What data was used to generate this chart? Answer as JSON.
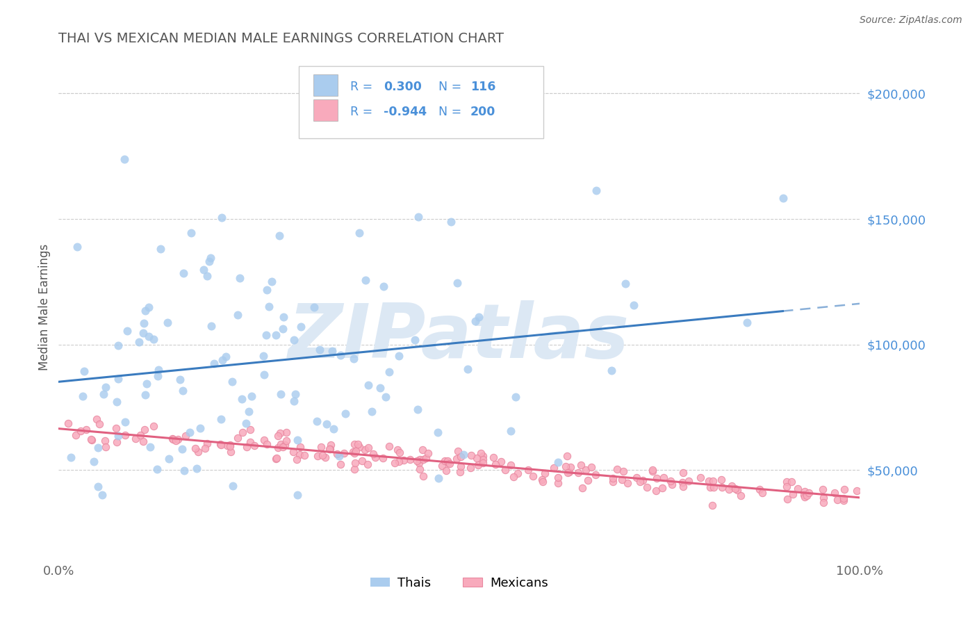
{
  "title": "THAI VS MEXICAN MEDIAN MALE EARNINGS CORRELATION CHART",
  "source": "Source: ZipAtlas.com",
  "ylabel": "Median Male Earnings",
  "xlim": [
    0,
    1
  ],
  "ylim": [
    15000,
    215000
  ],
  "yticks": [
    50000,
    100000,
    150000,
    200000
  ],
  "ytick_labels": [
    "$50,000",
    "$100,000",
    "$150,000",
    "$200,000"
  ],
  "xtick_labels": [
    "0.0%",
    "100.0%"
  ],
  "thai_R": 0.3,
  "thai_N": 116,
  "mexican_R": -0.944,
  "mexican_N": 200,
  "thai_scatter_color": "#aaccee",
  "thai_line_color": "#3a7bbf",
  "mexican_scatter_color": "#f8aabc",
  "mexican_scatter_edge": "#e888a0",
  "mexican_line_color": "#e06080",
  "bg_color": "#ffffff",
  "grid_color": "#cccccc",
  "title_color": "#555555",
  "ytick_color": "#4a90d9",
  "legend_color": "#4a90d9",
  "watermark_color": "#dce8f4",
  "figsize": [
    14.06,
    8.92
  ],
  "dpi": 100,
  "thai_seed": 42,
  "mex_seed": 17
}
